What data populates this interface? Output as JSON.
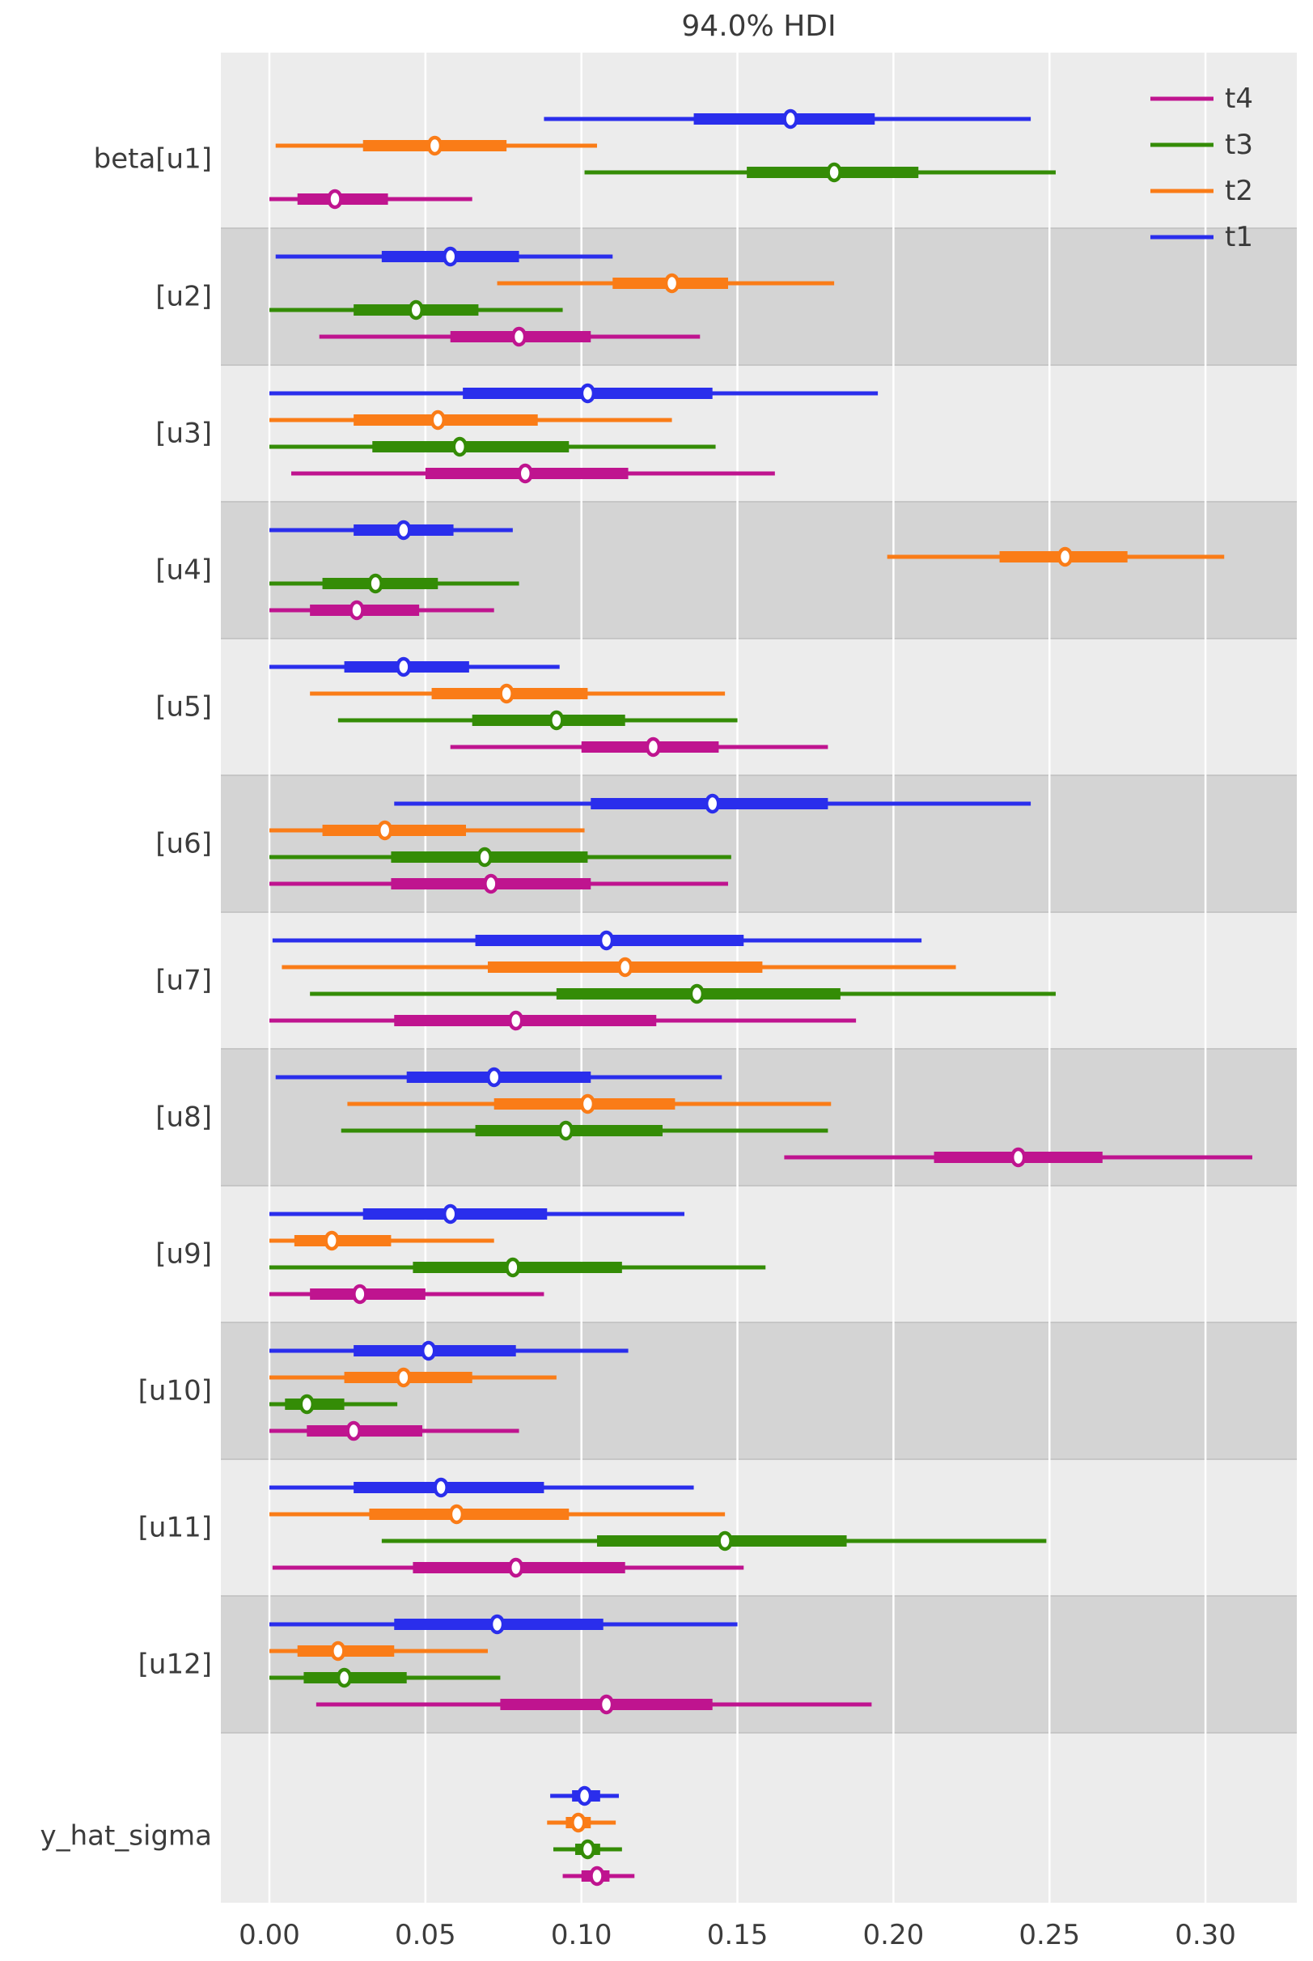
{
  "title": "94.0% HDI",
  "legend": {
    "items": [
      {
        "label": "t4",
        "color": "#bf148f"
      },
      {
        "label": "t3",
        "color": "#348c06"
      },
      {
        "label": "t2",
        "color": "#fa7c17"
      },
      {
        "label": "t1",
        "color": "#2a2eec"
      }
    ]
  },
  "chart_data": {
    "type": "forest",
    "title": "94.0% HDI",
    "hdi_probability": 0.94,
    "x_ticks": [
      0.0,
      0.05,
      0.1,
      0.15,
      0.2,
      0.25,
      0.3
    ],
    "x_tick_labels": [
      "0.00",
      "0.05",
      "0.10",
      "0.15",
      "0.20",
      "0.25",
      "0.30"
    ],
    "xlim": [
      -0.0156,
      0.3293
    ],
    "grid": true,
    "legend_position": "upper right",
    "band_colors": {
      "light": "#ececec",
      "dark": "#d4d4d4"
    },
    "series": [
      {
        "name": "t1",
        "color": "#2a2eec"
      },
      {
        "name": "t2",
        "color": "#fa7c17"
      },
      {
        "name": "t3",
        "color": "#348c06"
      },
      {
        "name": "t4",
        "color": "#bf148f"
      }
    ],
    "groups": [
      {
        "label": "beta[u1]",
        "band": "light",
        "rows": [
          {
            "series": "t1",
            "hdi_94": [
              0.088,
              0.244
            ],
            "quartile": [
              0.136,
              0.194
            ],
            "median": 0.167
          },
          {
            "series": "t2",
            "hdi_94": [
              0.002,
              0.105
            ],
            "quartile": [
              0.03,
              0.076
            ],
            "median": 0.053
          },
          {
            "series": "t3",
            "hdi_94": [
              0.101,
              0.252
            ],
            "quartile": [
              0.153,
              0.208
            ],
            "median": 0.181
          },
          {
            "series": "t4",
            "hdi_94": [
              0.0,
              0.065
            ],
            "quartile": [
              0.009,
              0.038
            ],
            "median": 0.021
          }
        ]
      },
      {
        "label": "[u2]",
        "band": "dark",
        "rows": [
          {
            "series": "t1",
            "hdi_94": [
              0.002,
              0.11
            ],
            "quartile": [
              0.036,
              0.08
            ],
            "median": 0.058
          },
          {
            "series": "t2",
            "hdi_94": [
              0.073,
              0.181
            ],
            "quartile": [
              0.11,
              0.147
            ],
            "median": 0.129
          },
          {
            "series": "t3",
            "hdi_94": [
              0.0,
              0.094
            ],
            "quartile": [
              0.027,
              0.067
            ],
            "median": 0.047
          },
          {
            "series": "t4",
            "hdi_94": [
              0.016,
              0.138
            ],
            "quartile": [
              0.058,
              0.103
            ],
            "median": 0.08
          }
        ]
      },
      {
        "label": "[u3]",
        "band": "light",
        "rows": [
          {
            "series": "t1",
            "hdi_94": [
              0.0,
              0.195
            ],
            "quartile": [
              0.062,
              0.142
            ],
            "median": 0.102
          },
          {
            "series": "t2",
            "hdi_94": [
              0.0,
              0.129
            ],
            "quartile": [
              0.027,
              0.086
            ],
            "median": 0.054
          },
          {
            "series": "t3",
            "hdi_94": [
              0.0,
              0.143
            ],
            "quartile": [
              0.033,
              0.096
            ],
            "median": 0.061
          },
          {
            "series": "t4",
            "hdi_94": [
              0.007,
              0.162
            ],
            "quartile": [
              0.05,
              0.115
            ],
            "median": 0.082
          }
        ]
      },
      {
        "label": "[u4]",
        "band": "dark",
        "rows": [
          {
            "series": "t1",
            "hdi_94": [
              0.0,
              0.078
            ],
            "quartile": [
              0.027,
              0.059
            ],
            "median": 0.043
          },
          {
            "series": "t2",
            "hdi_94": [
              0.198,
              0.306
            ],
            "quartile": [
              0.234,
              0.275
            ],
            "median": 0.255
          },
          {
            "series": "t3",
            "hdi_94": [
              0.0,
              0.08
            ],
            "quartile": [
              0.017,
              0.054
            ],
            "median": 0.034
          },
          {
            "series": "t4",
            "hdi_94": [
              0.0,
              0.072
            ],
            "quartile": [
              0.013,
              0.048
            ],
            "median": 0.028
          }
        ]
      },
      {
        "label": "[u5]",
        "band": "light",
        "rows": [
          {
            "series": "t1",
            "hdi_94": [
              0.0,
              0.093
            ],
            "quartile": [
              0.024,
              0.064
            ],
            "median": 0.043
          },
          {
            "series": "t2",
            "hdi_94": [
              0.013,
              0.146
            ],
            "quartile": [
              0.052,
              0.102
            ],
            "median": 0.076
          },
          {
            "series": "t3",
            "hdi_94": [
              0.022,
              0.15
            ],
            "quartile": [
              0.065,
              0.114
            ],
            "median": 0.092
          },
          {
            "series": "t4",
            "hdi_94": [
              0.058,
              0.179
            ],
            "quartile": [
              0.1,
              0.144
            ],
            "median": 0.123
          }
        ]
      },
      {
        "label": "[u6]",
        "band": "dark",
        "rows": [
          {
            "series": "t1",
            "hdi_94": [
              0.04,
              0.244
            ],
            "quartile": [
              0.103,
              0.179
            ],
            "median": 0.142
          },
          {
            "series": "t2",
            "hdi_94": [
              0.0,
              0.101
            ],
            "quartile": [
              0.017,
              0.063
            ],
            "median": 0.037
          },
          {
            "series": "t3",
            "hdi_94": [
              0.0,
              0.148
            ],
            "quartile": [
              0.039,
              0.102
            ],
            "median": 0.069
          },
          {
            "series": "t4",
            "hdi_94": [
              0.0,
              0.147
            ],
            "quartile": [
              0.039,
              0.103
            ],
            "median": 0.071
          }
        ]
      },
      {
        "label": "[u7]",
        "band": "light",
        "rows": [
          {
            "series": "t1",
            "hdi_94": [
              0.001,
              0.209
            ],
            "quartile": [
              0.066,
              0.152
            ],
            "median": 0.108
          },
          {
            "series": "t2",
            "hdi_94": [
              0.004,
              0.22
            ],
            "quartile": [
              0.07,
              0.158
            ],
            "median": 0.114
          },
          {
            "series": "t3",
            "hdi_94": [
              0.013,
              0.252
            ],
            "quartile": [
              0.092,
              0.183
            ],
            "median": 0.137
          },
          {
            "series": "t4",
            "hdi_94": [
              0.0,
              0.188
            ],
            "quartile": [
              0.04,
              0.124
            ],
            "median": 0.079
          }
        ]
      },
      {
        "label": "[u8]",
        "band": "dark",
        "rows": [
          {
            "series": "t1",
            "hdi_94": [
              0.002,
              0.145
            ],
            "quartile": [
              0.044,
              0.103
            ],
            "median": 0.072
          },
          {
            "series": "t2",
            "hdi_94": [
              0.025,
              0.18
            ],
            "quartile": [
              0.072,
              0.13
            ],
            "median": 0.102
          },
          {
            "series": "t3",
            "hdi_94": [
              0.023,
              0.179
            ],
            "quartile": [
              0.066,
              0.126
            ],
            "median": 0.095
          },
          {
            "series": "t4",
            "hdi_94": [
              0.165,
              0.315
            ],
            "quartile": [
              0.213,
              0.267
            ],
            "median": 0.24
          }
        ]
      },
      {
        "label": "[u9]",
        "band": "light",
        "rows": [
          {
            "series": "t1",
            "hdi_94": [
              0.0,
              0.133
            ],
            "quartile": [
              0.03,
              0.089
            ],
            "median": 0.058
          },
          {
            "series": "t2",
            "hdi_94": [
              0.0,
              0.072
            ],
            "quartile": [
              0.008,
              0.039
            ],
            "median": 0.02
          },
          {
            "series": "t3",
            "hdi_94": [
              0.0,
              0.159
            ],
            "quartile": [
              0.046,
              0.113
            ],
            "median": 0.078
          },
          {
            "series": "t4",
            "hdi_94": [
              0.0,
              0.088
            ],
            "quartile": [
              0.013,
              0.05
            ],
            "median": 0.029
          }
        ]
      },
      {
        "label": "[u10]",
        "band": "dark",
        "rows": [
          {
            "series": "t1",
            "hdi_94": [
              0.0,
              0.115
            ],
            "quartile": [
              0.027,
              0.079
            ],
            "median": 0.051
          },
          {
            "series": "t2",
            "hdi_94": [
              0.0,
              0.092
            ],
            "quartile": [
              0.024,
              0.065
            ],
            "median": 0.043
          },
          {
            "series": "t3",
            "hdi_94": [
              0.0,
              0.041
            ],
            "quartile": [
              0.005,
              0.024
            ],
            "median": 0.012
          },
          {
            "series": "t4",
            "hdi_94": [
              0.0,
              0.08
            ],
            "quartile": [
              0.012,
              0.049
            ],
            "median": 0.027
          }
        ]
      },
      {
        "label": "[u11]",
        "band": "light",
        "rows": [
          {
            "series": "t1",
            "hdi_94": [
              0.0,
              0.136
            ],
            "quartile": [
              0.027,
              0.088
            ],
            "median": 0.055
          },
          {
            "series": "t2",
            "hdi_94": [
              0.0,
              0.146
            ],
            "quartile": [
              0.032,
              0.096
            ],
            "median": 0.06
          },
          {
            "series": "t3",
            "hdi_94": [
              0.036,
              0.249
            ],
            "quartile": [
              0.105,
              0.185
            ],
            "median": 0.146
          },
          {
            "series": "t4",
            "hdi_94": [
              0.001,
              0.152
            ],
            "quartile": [
              0.046,
              0.114
            ],
            "median": 0.079
          }
        ]
      },
      {
        "label": "[u12]",
        "band": "dark",
        "rows": [
          {
            "series": "t1",
            "hdi_94": [
              0.0,
              0.15
            ],
            "quartile": [
              0.04,
              0.107
            ],
            "median": 0.073
          },
          {
            "series": "t2",
            "hdi_94": [
              0.0,
              0.07
            ],
            "quartile": [
              0.009,
              0.04
            ],
            "median": 0.022
          },
          {
            "series": "t3",
            "hdi_94": [
              0.0,
              0.074
            ],
            "quartile": [
              0.011,
              0.044
            ],
            "median": 0.024
          },
          {
            "series": "t4",
            "hdi_94": [
              0.015,
              0.193
            ],
            "quartile": [
              0.074,
              0.142
            ],
            "median": 0.108
          }
        ]
      },
      {
        "label": "y_hat_sigma",
        "band": "light",
        "rows": [
          {
            "series": "t1",
            "hdi_94": [
              0.09,
              0.112
            ],
            "quartile": [
              0.097,
              0.106
            ],
            "median": 0.101
          },
          {
            "series": "t2",
            "hdi_94": [
              0.089,
              0.111
            ],
            "quartile": [
              0.095,
              0.103
            ],
            "median": 0.099
          },
          {
            "series": "t3",
            "hdi_94": [
              0.091,
              0.113
            ],
            "quartile": [
              0.098,
              0.106
            ],
            "median": 0.102
          },
          {
            "series": "t4",
            "hdi_94": [
              0.094,
              0.117
            ],
            "quartile": [
              0.1,
              0.109
            ],
            "median": 0.105
          }
        ]
      }
    ]
  }
}
